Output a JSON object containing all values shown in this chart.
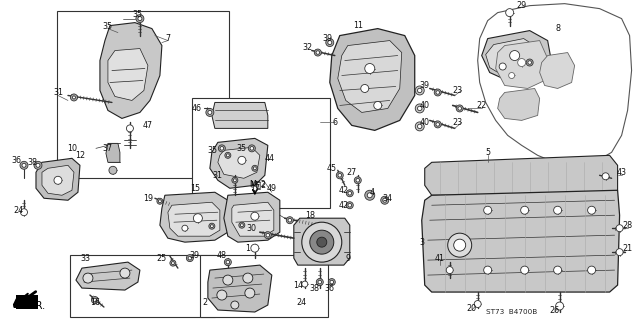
{
  "bg_color": "#ffffff",
  "line_color": "#333333",
  "part_fill": "#d4d4d4",
  "part_edge": "#222222",
  "box_edge": "#333333",
  "label_color": "#111111",
  "label_fs": 5.8,
  "st73": "ST73  B4700B"
}
